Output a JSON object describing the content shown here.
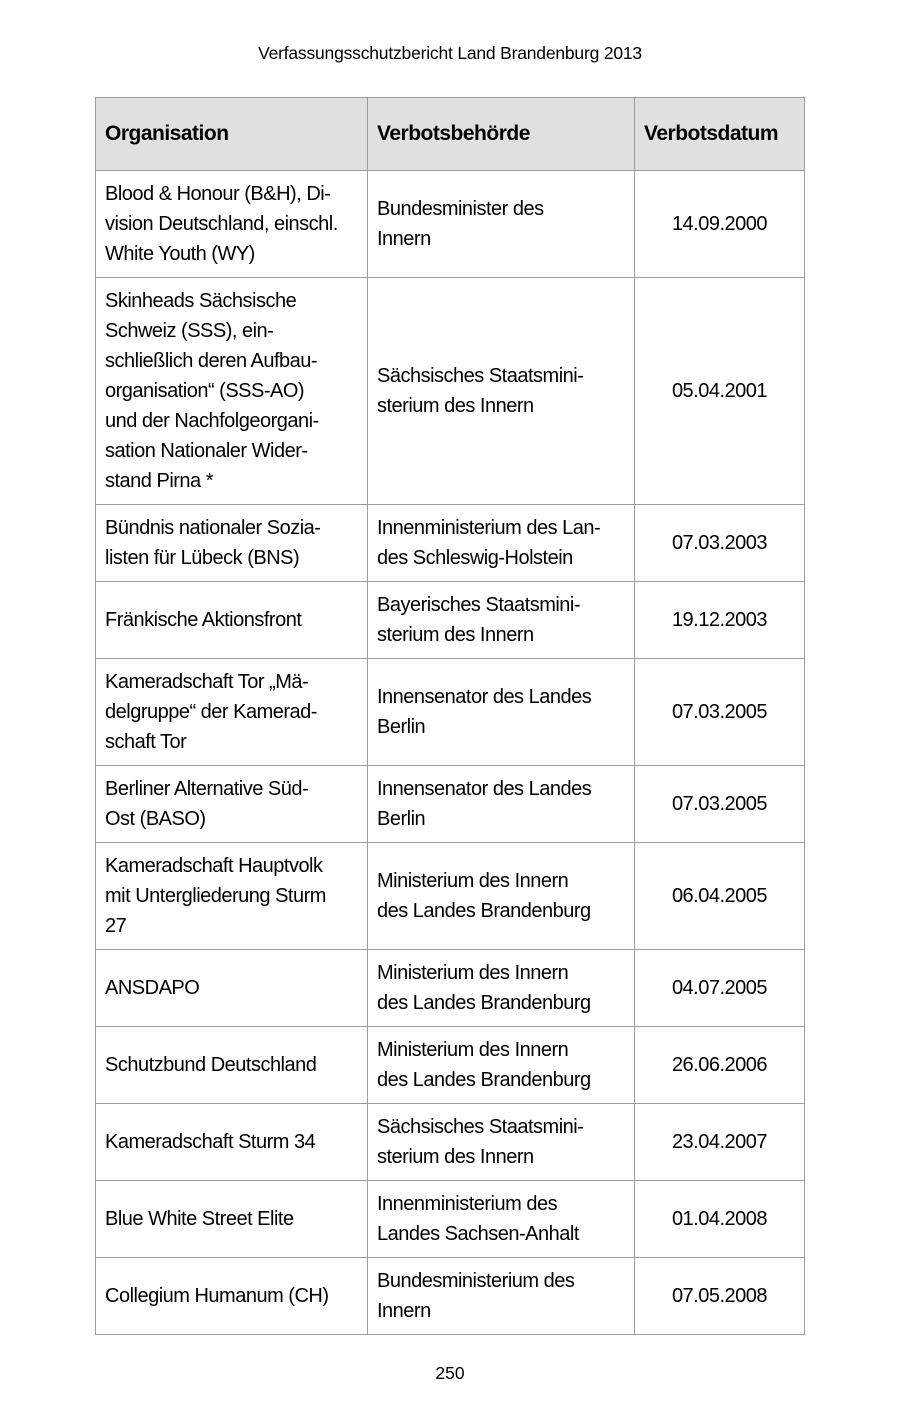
{
  "page": {
    "header_title": "Verfassungsschutzbericht Land Brandenburg 2013",
    "page_number": "250"
  },
  "table": {
    "columns": [
      "Organisation",
      "Verbotsbehörde",
      "Verbotsdatum"
    ],
    "rows": [
      {
        "organisation": "Blood & Honour (B&H), Di-\nvision Deutschland, einschl.\nWhite Youth (WY)",
        "behoerde": "Bundesminister des\nInnern",
        "datum": "14.09.2000"
      },
      {
        "organisation": "Skinheads Sächsische\nSchweiz (SSS), ein-\nschließlich deren Aufbau-\norganisation“ (SSS-AO)\nund der Nachfolgeorgani-\nsation Nationaler Wider-\nstand Pirna *",
        "behoerde": "Sächsisches Staatsmini-\nsterium des Innern",
        "datum": "05.04.2001"
      },
      {
        "organisation": "Bündnis nationaler Sozia-\nlisten für Lübeck (BNS)",
        "behoerde": "Innenministerium des Lan-\ndes Schleswig-Holstein",
        "datum": "07.03.2003"
      },
      {
        "organisation": "Fränkische Aktionsfront",
        "behoerde": "Bayerisches Staatsmini-\nsterium des Innern",
        "datum": "19.12.2003"
      },
      {
        "organisation": "Kameradschaft Tor „Mä-\ndelgruppe“ der Kamerad-\nschaft Tor",
        "behoerde": "Innensenator des Landes\nBerlin",
        "datum": "07.03.2005"
      },
      {
        "organisation": "Berliner Alternative Süd-\nOst (BASO)",
        "behoerde": "Innensenator des Landes\nBerlin",
        "datum": "07.03.2005"
      },
      {
        "organisation": "Kameradschaft Hauptvolk\nmit Untergliederung Sturm\n27",
        "behoerde": "Ministerium des Innern\ndes Landes Brandenburg",
        "datum": "06.04.2005"
      },
      {
        "organisation": "ANSDAPO",
        "behoerde": "Ministerium des Innern\ndes Landes Brandenburg",
        "datum": "04.07.2005"
      },
      {
        "organisation": "Schutzbund Deutschland",
        "behoerde": "Ministerium des Innern\ndes Landes Brandenburg",
        "datum": "26.06.2006"
      },
      {
        "organisation": "Kameradschaft Sturm 34",
        "behoerde": "Sächsisches Staatsmini-\nsterium des Innern",
        "datum": "23.04.2007"
      },
      {
        "organisation": "Blue White Street Elite",
        "behoerde": "Innenministerium des\nLandes Sachsen-Anhalt",
        "datum": "01.04.2008"
      },
      {
        "organisation": "Collegium Humanum (CH)",
        "behoerde": "Bundesministerium des\nInnern",
        "datum": "07.05.2008"
      }
    ]
  },
  "colors": {
    "header_bg": "#e0e0e0",
    "border": "#9d9d9d",
    "page_bg": "#ffffff",
    "text": "#000000"
  }
}
